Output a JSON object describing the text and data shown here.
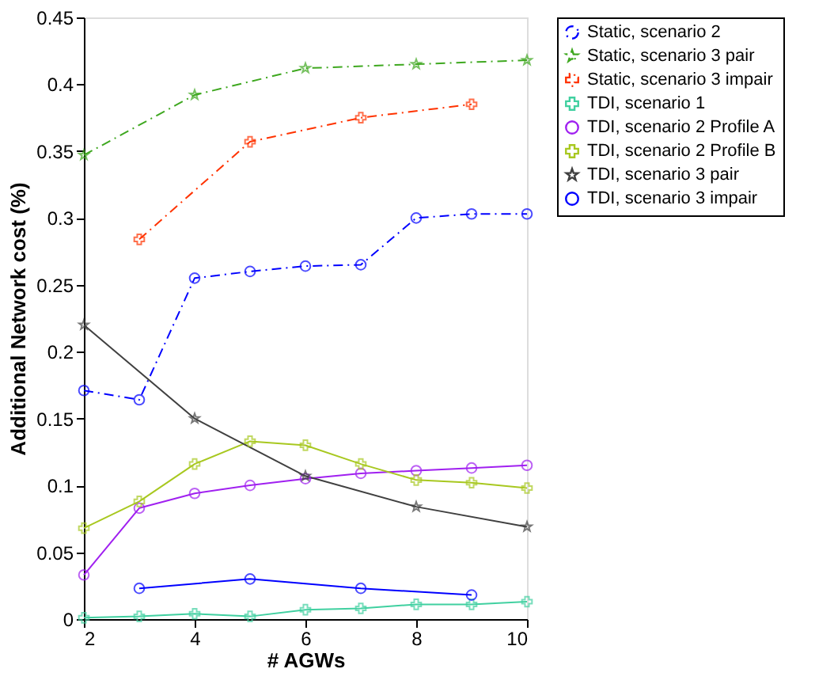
{
  "chart_data": {
    "type": "line",
    "xlabel": "# AGWs",
    "ylabel": "Additional Network cost (%)",
    "xlim": [
      2,
      10
    ],
    "xticks": [
      2,
      4,
      6,
      8,
      10
    ],
    "ylim": [
      0,
      0.45
    ],
    "yticks": [
      0,
      0.05,
      0.1,
      0.15,
      0.2,
      0.25,
      0.3,
      0.35,
      0.4,
      0.45
    ],
    "grid": false,
    "legend": "top right",
    "series": [
      {
        "name": "Static, scenario 2",
        "color": "#0000ff",
        "marker": "circle",
        "line_style": "dashed",
        "x": [
          2,
          3,
          4,
          5,
          6,
          7,
          8,
          9,
          10
        ],
        "values": [
          0.171,
          0.164,
          0.255,
          0.26,
          0.264,
          0.265,
          0.3,
          0.303,
          0.303
        ]
      },
      {
        "name": "Static, scenario 3 pair",
        "color": "#3fa820",
        "marker": "star",
        "line_style": "dashed",
        "x": [
          2,
          4,
          6,
          8,
          10
        ],
        "values": [
          0.347,
          0.392,
          0.412,
          0.415,
          0.418
        ]
      },
      {
        "name": "Static, scenario 3 impair",
        "color": "#ff3300",
        "marker": "cross",
        "line_style": "dashed",
        "x": [
          3,
          5,
          7,
          9
        ],
        "values": [
          0.284,
          0.357,
          0.375,
          0.385
        ]
      },
      {
        "name": "TDI, scenario 1",
        "color": "#40d0a0",
        "marker": "cross",
        "line_style": "solid",
        "x": [
          2,
          3,
          4,
          5,
          6,
          7,
          8,
          9,
          10
        ],
        "values": [
          0.001,
          0.002,
          0.004,
          0.002,
          0.007,
          0.008,
          0.011,
          0.011,
          0.013
        ]
      },
      {
        "name": "TDI, scenario 2 Profile A",
        "color": "#a020f0",
        "marker": "circle",
        "line_style": "solid",
        "x": [
          2,
          3,
          4,
          5,
          6,
          7,
          8,
          9,
          10
        ],
        "values": [
          0.033,
          0.083,
          0.094,
          0.1,
          0.105,
          0.109,
          0.111,
          0.113,
          0.115
        ]
      },
      {
        "name": "TDI, scenario 2 Profile B",
        "color": "#a8c820",
        "marker": "cross",
        "line_style": "solid",
        "x": [
          2,
          3,
          4,
          5,
          6,
          7,
          8,
          9,
          10
        ],
        "values": [
          0.068,
          0.088,
          0.116,
          0.133,
          0.13,
          0.116,
          0.104,
          0.102,
          0.098
        ]
      },
      {
        "name": "TDI, scenario 3 pair",
        "color": "#404040",
        "marker": "star",
        "line_style": "solid",
        "x": [
          2,
          4,
          6,
          8,
          10
        ],
        "values": [
          0.22,
          0.15,
          0.107,
          0.084,
          0.069
        ]
      },
      {
        "name": "TDI, scenario 3 impair",
        "color": "#0000ff",
        "marker": "circle",
        "line_style": "solid",
        "x": [
          3,
          5,
          7,
          9
        ],
        "values": [
          0.023,
          0.03,
          0.023,
          0.018
        ]
      }
    ]
  }
}
